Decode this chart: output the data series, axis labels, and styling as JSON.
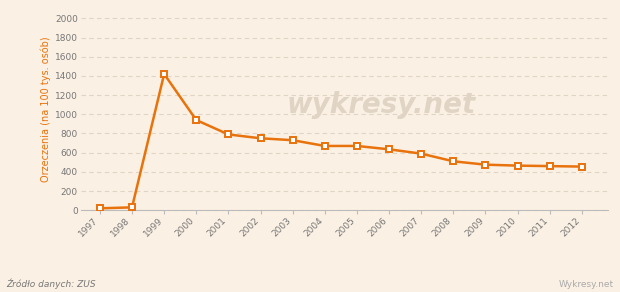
{
  "years": [
    1997,
    1998,
    1999,
    2000,
    2001,
    2002,
    2003,
    2004,
    2005,
    2006,
    2007,
    2008,
    2009,
    2010,
    2011,
    2012
  ],
  "values": [
    20,
    30,
    1420,
    940,
    790,
    750,
    730,
    670,
    670,
    635,
    590,
    510,
    475,
    465,
    460,
    455
  ],
  "line_color": "#E8720C",
  "marker_face": "#FFFFFF",
  "bg_color": "#FBF0E4",
  "plot_bg_color": "#FBF0E4",
  "ylabel": "Orzeczenia (na 100 tys. osób)",
  "ylabel_color": "#E8720C",
  "grid_color": "#E0D5C5",
  "yticks": [
    0,
    200,
    400,
    600,
    800,
    1000,
    1200,
    1400,
    1600,
    1800,
    2000
  ],
  "ylim": [
    0,
    2100
  ],
  "source_text": "Źródło danych: ZUS",
  "brand_text": "Wykresy.net",
  "watermark_text": "wykresy.net",
  "tick_label_color": "#777777",
  "source_color": "#777777",
  "brand_color": "#AAAAAA"
}
